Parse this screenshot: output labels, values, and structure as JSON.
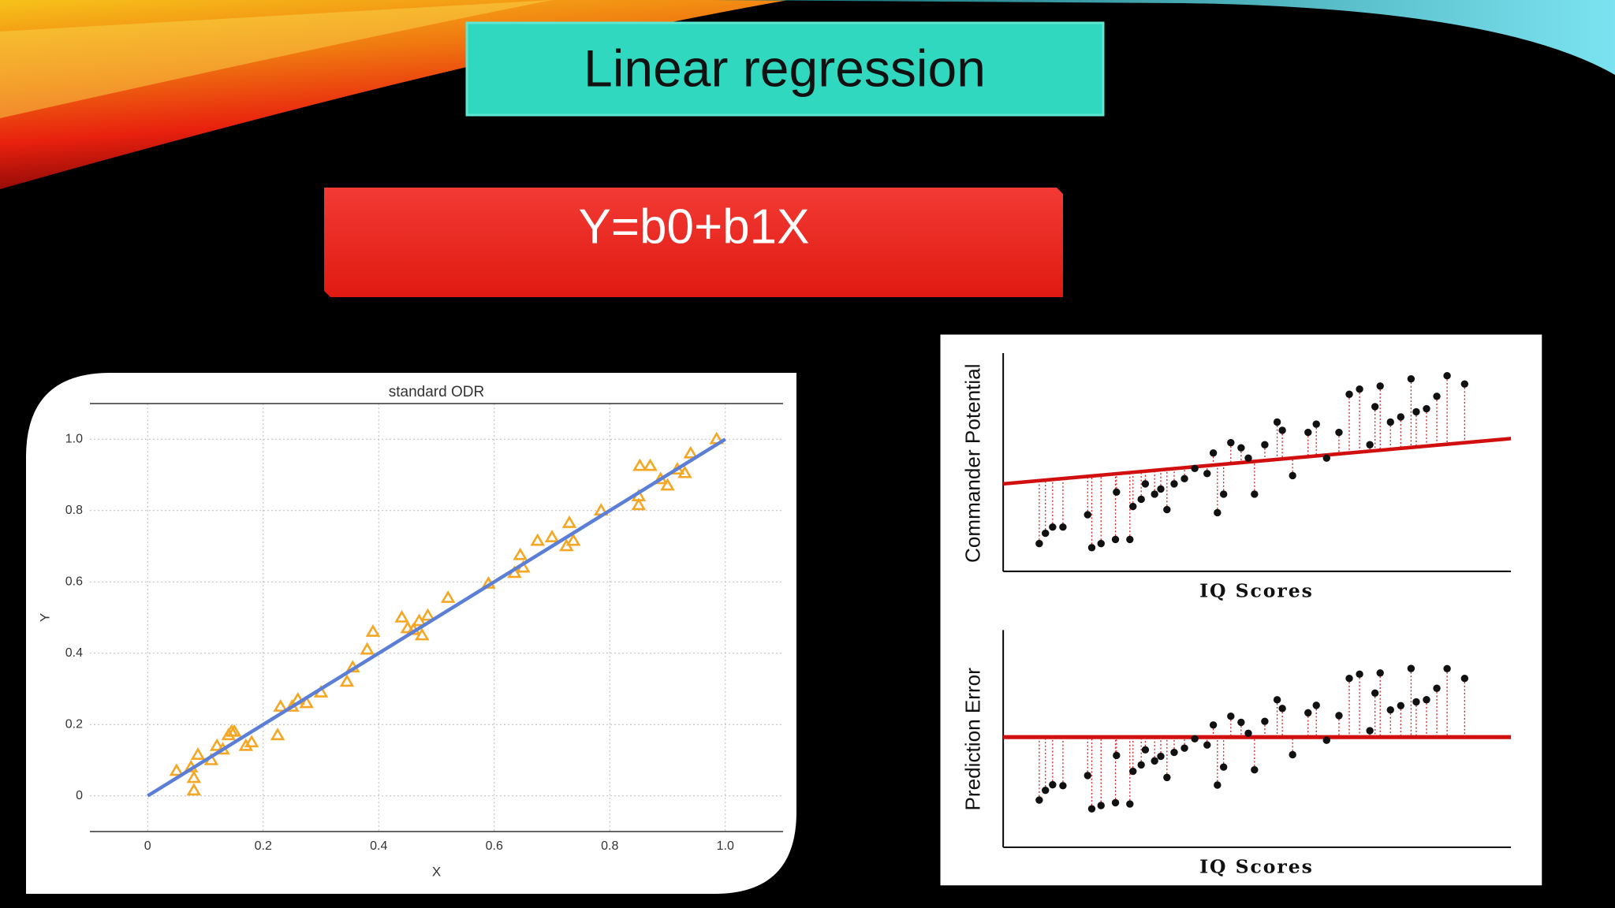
{
  "slide": {
    "title": "Linear regression",
    "formula": "Y=b0+b1X"
  },
  "figures": [
    {
      "ylabel": "Commander Potential",
      "xlabel": "IQ Scores"
    },
    {
      "ylabel": "Prediction Error",
      "xlabel": "IQ Scores"
    }
  ],
  "chart_data": {
    "type": "scatter",
    "title": "standard ODR",
    "xlabel": "X",
    "ylabel": "Y",
    "xlim": [
      -0.1,
      1.1
    ],
    "ylim": [
      -0.1,
      1.1
    ],
    "xticks": [
      0,
      0.2,
      0.4,
      0.6,
      0.8,
      {
        "value": 1,
        "label": "1.0"
      }
    ],
    "yticks": [
      0,
      0.2,
      0.4,
      0.6,
      0.8,
      {
        "value": 1,
        "label": "1.0"
      }
    ],
    "grid": true,
    "series": [
      {
        "type": "scatter",
        "marker": "triangle",
        "color": "#f5a623",
        "x": [
          0.05,
          0.075,
          0.08,
          0.08,
          0.087,
          0.11,
          0.12,
          0.13,
          0.14,
          0.145,
          0.15,
          0.17,
          0.18,
          0.225,
          0.23,
          0.25,
          0.26,
          0.275,
          0.3,
          0.345,
          0.355,
          0.38,
          0.39,
          0.44,
          0.45,
          0.46,
          0.47,
          0.475,
          0.485,
          0.52,
          0.59,
          0.635,
          0.645,
          0.65,
          0.675,
          0.7,
          0.725,
          0.73,
          0.737,
          0.785,
          0.85,
          0.85,
          0.852,
          0.87,
          0.888,
          0.9,
          0.917,
          0.93,
          0.94,
          0.985
        ],
        "y": [
          0.07,
          0.08,
          0.05,
          0.015,
          0.115,
          0.1,
          0.14,
          0.13,
          0.17,
          0.18,
          0.18,
          0.14,
          0.15,
          0.17,
          0.25,
          0.25,
          0.27,
          0.26,
          0.29,
          0.32,
          0.36,
          0.41,
          0.46,
          0.5,
          0.47,
          0.465,
          0.49,
          0.45,
          0.505,
          0.555,
          0.595,
          0.625,
          0.675,
          0.64,
          0.715,
          0.725,
          0.7,
          0.765,
          0.715,
          0.8,
          0.84,
          0.815,
          0.925,
          0.925,
          0.888,
          0.87,
          0.915,
          0.905,
          0.96,
          1.0
        ]
      },
      {
        "type": "line",
        "color": "#5b7fd6",
        "x": [
          0,
          1
        ],
        "y": [
          0,
          1
        ]
      }
    ]
  }
}
